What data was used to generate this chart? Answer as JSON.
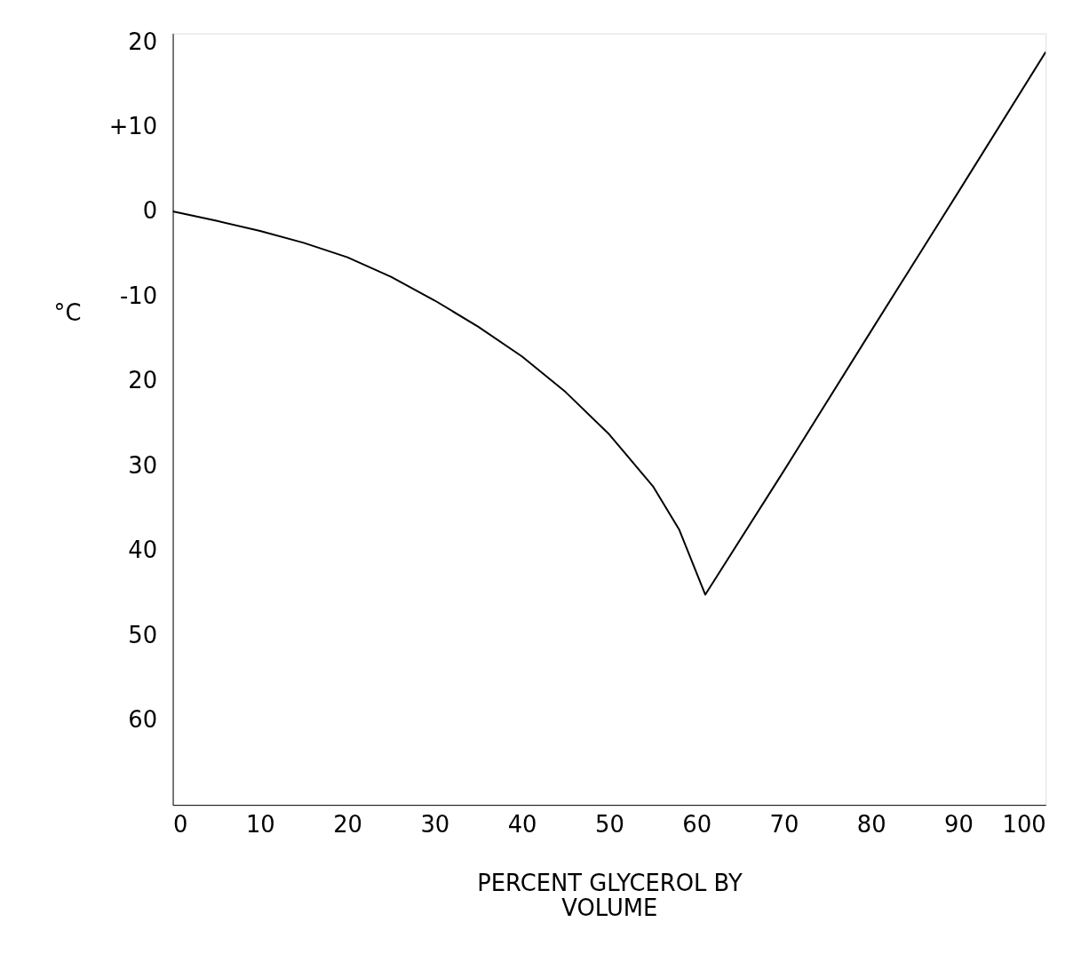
{
  "chart_data": {
    "type": "line",
    "xlabel": "PERCENT GLYCEROL BY\nVOLUME",
    "ylabel": "°C",
    "x": [
      0,
      5,
      10,
      15,
      20,
      25,
      30,
      35,
      40,
      45,
      50,
      55,
      58,
      61,
      70,
      80,
      90,
      100
    ],
    "series": [
      {
        "color": "#000000",
        "values": [
          0,
          -1.1,
          -2.3,
          -3.7,
          -5.4,
          -7.7,
          -10.5,
          -13.6,
          -17.1,
          -21.3,
          -26.3,
          -32.4,
          -37.5,
          -45.2,
          -30.6,
          -14.1,
          2.3,
          18.8
        ]
      }
    ],
    "xlim": [
      0,
      100
    ],
    "xticks": [
      0,
      10,
      20,
      30,
      40,
      50,
      60,
      70,
      80,
      90,
      100
    ],
    "ylim": [
      -70,
      21
    ],
    "yticks": [
      {
        "value": 20,
        "label": "20"
      },
      {
        "value": 10,
        "label": "+10"
      },
      {
        "value": 0,
        "label": "0"
      },
      {
        "value": -10,
        "label": "-10"
      },
      {
        "value": -20,
        "label": "20"
      },
      {
        "value": -30,
        "label": "30"
      },
      {
        "value": -40,
        "label": "40"
      },
      {
        "value": -50,
        "label": "50"
      },
      {
        "value": -60,
        "label": "60"
      }
    ],
    "grid": false,
    "marker": "none",
    "line_style": "solid"
  }
}
